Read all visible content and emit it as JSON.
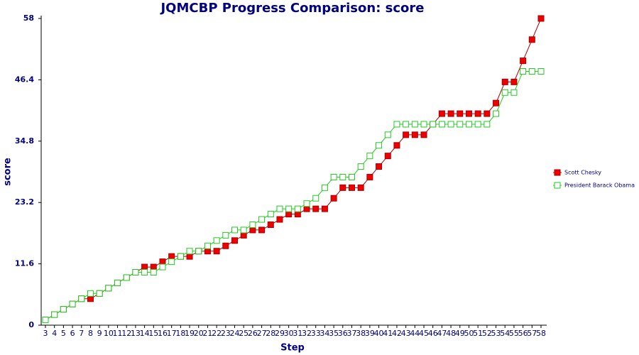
{
  "chart_data": {
    "type": "line",
    "title": "JQMCBP Progress Comparison: score",
    "x_label": "Step",
    "y_label": "score",
    "categories": [
      3,
      4,
      5,
      6,
      7,
      8,
      9,
      10,
      11,
      12,
      13,
      14,
      15,
      16,
      17,
      18,
      19,
      20,
      21,
      22,
      23,
      24,
      25,
      26,
      27,
      28,
      29,
      30,
      31,
      32,
      33,
      34,
      35,
      36,
      37,
      38,
      39,
      40,
      41,
      42,
      43,
      44,
      45,
      46,
      47,
      48,
      49,
      50,
      51,
      52,
      53,
      54,
      55,
      56,
      57,
      58
    ],
    "series": [
      {
        "name": "Scott Chesky",
        "color": "#ee0000",
        "values": [
          1,
          2,
          3,
          4,
          5,
          5,
          6,
          7,
          8,
          9,
          10,
          11,
          11,
          12,
          13,
          13,
          13,
          14,
          14,
          14,
          15,
          16,
          17,
          18,
          18,
          19,
          20,
          21,
          21,
          22,
          22,
          22,
          24,
          26,
          26,
          26,
          28,
          30,
          32,
          34,
          36,
          36,
          36,
          38,
          40,
          40,
          40,
          40,
          40,
          40,
          42,
          46,
          46,
          50,
          54,
          58
        ]
      },
      {
        "name": "President Barack Obama",
        "color": "#22cc22",
        "values": [
          1,
          2,
          3,
          4,
          5,
          6,
          6,
          7,
          8,
          9,
          10,
          10,
          10,
          11,
          12,
          13,
          14,
          14,
          15,
          16,
          17,
          18,
          18,
          19,
          20,
          21,
          22,
          22,
          22,
          23,
          24,
          26,
          28,
          28,
          28,
          30,
          32,
          34,
          36,
          38,
          38,
          38,
          38,
          38,
          38,
          38,
          38,
          38,
          38,
          38,
          40,
          44,
          44,
          48,
          48,
          48
        ]
      }
    ],
    "ylim": [
      0,
      58
    ],
    "yticks": [
      0,
      11.6,
      23.2,
      34.8,
      46.4,
      58
    ],
    "legend": "right"
  }
}
